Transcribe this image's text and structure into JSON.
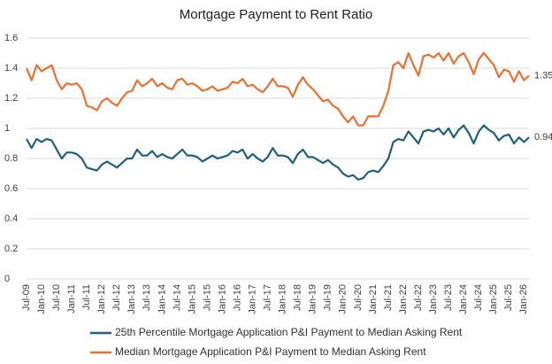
{
  "chart_data": {
    "type": "line",
    "title": "Mortgage Payment to Rent Ratio",
    "categories": [
      "Jul-09",
      null,
      null,
      "Jan-10",
      null,
      null,
      "Jul-10",
      null,
      null,
      "Jan-11",
      null,
      null,
      "Jul-11",
      null,
      null,
      "Jan-12",
      null,
      null,
      "Jul-12",
      null,
      null,
      "Jan-13",
      null,
      null,
      "Jul-13",
      null,
      null,
      "Jan-14",
      null,
      null,
      "Jul-14",
      null,
      null,
      "Jan-15",
      null,
      null,
      "Jul-15",
      null,
      null,
      "Jan-16",
      null,
      null,
      "Jul-16",
      null,
      null,
      "Jan-17",
      null,
      null,
      "Jul-17",
      null,
      null,
      "Jan-18",
      null,
      null,
      "Jul-18",
      null,
      null,
      "Jan-19",
      null,
      null,
      "Jul-19",
      null,
      null,
      "Jan-20",
      null,
      null,
      "Jul-20",
      null,
      null,
      "Jan-21",
      null,
      null,
      "Jul-21",
      null,
      null,
      "Jan-22",
      null,
      null,
      "Jul-22",
      null,
      null,
      "Jan-23",
      null,
      null,
      "Jul-23",
      null,
      null,
      "Jan-24",
      null,
      null,
      "Jul-24",
      null,
      null,
      "Jan-25",
      null,
      null,
      "Jul-25",
      null,
      null,
      "Jan-26",
      null
    ],
    "series": [
      {
        "name": "25th Percentile Mortgage Application P&I Payment to Median Asking Rent",
        "color": "#215f7a",
        "values": [
          0.93,
          0.87,
          0.93,
          0.91,
          0.93,
          0.92,
          0.86,
          0.8,
          0.84,
          0.84,
          0.83,
          0.8,
          0.74,
          0.73,
          0.72,
          0.76,
          0.78,
          0.76,
          0.74,
          0.77,
          0.8,
          0.8,
          0.86,
          0.82,
          0.82,
          0.85,
          0.81,
          0.83,
          0.81,
          0.8,
          0.83,
          0.86,
          0.82,
          0.82,
          0.81,
          0.78,
          0.8,
          0.82,
          0.8,
          0.81,
          0.82,
          0.85,
          0.84,
          0.86,
          0.8,
          0.83,
          0.8,
          0.78,
          0.81,
          0.87,
          0.82,
          0.82,
          0.81,
          0.77,
          0.83,
          0.86,
          0.81,
          0.81,
          0.79,
          0.77,
          0.79,
          0.76,
          0.74,
          0.7,
          0.68,
          0.69,
          0.66,
          0.67,
          0.71,
          0.72,
          0.71,
          0.75,
          0.8,
          0.91,
          0.93,
          0.92,
          0.98,
          0.94,
          0.9,
          0.98,
          0.99,
          0.98,
          1.0,
          0.96,
          1.0,
          0.94,
          0.99,
          1.02,
          0.97,
          0.9,
          0.98,
          1.02,
          0.99,
          0.97,
          0.92,
          0.95,
          0.96,
          0.9,
          0.94,
          0.91,
          0.94
        ]
      },
      {
        "name": "Median Mortgage Application P&I Payment to Median Asking Rent",
        "color": "#e97132",
        "values": [
          1.4,
          1.32,
          1.42,
          1.38,
          1.4,
          1.42,
          1.32,
          1.26,
          1.3,
          1.29,
          1.3,
          1.26,
          1.15,
          1.14,
          1.12,
          1.18,
          1.2,
          1.17,
          1.15,
          1.2,
          1.24,
          1.25,
          1.32,
          1.28,
          1.3,
          1.33,
          1.28,
          1.3,
          1.27,
          1.26,
          1.32,
          1.33,
          1.29,
          1.3,
          1.28,
          1.25,
          1.26,
          1.28,
          1.25,
          1.26,
          1.27,
          1.31,
          1.3,
          1.33,
          1.28,
          1.29,
          1.26,
          1.24,
          1.28,
          1.33,
          1.28,
          1.28,
          1.27,
          1.21,
          1.29,
          1.34,
          1.29,
          1.26,
          1.22,
          1.18,
          1.19,
          1.15,
          1.13,
          1.08,
          1.04,
          1.08,
          1.02,
          1.02,
          1.08,
          1.08,
          1.08,
          1.15,
          1.25,
          1.42,
          1.44,
          1.4,
          1.5,
          1.42,
          1.35,
          1.48,
          1.49,
          1.47,
          1.5,
          1.45,
          1.5,
          1.43,
          1.48,
          1.5,
          1.44,
          1.36,
          1.46,
          1.5,
          1.46,
          1.42,
          1.34,
          1.39,
          1.38,
          1.31,
          1.38,
          1.32,
          1.35
        ]
      }
    ],
    "ylim": [
      0,
      1.6
    ],
    "yticks": [
      0,
      0.2,
      0.4,
      0.6,
      0.8,
      1,
      1.2,
      1.4,
      1.6
    ],
    "grid": true
  }
}
